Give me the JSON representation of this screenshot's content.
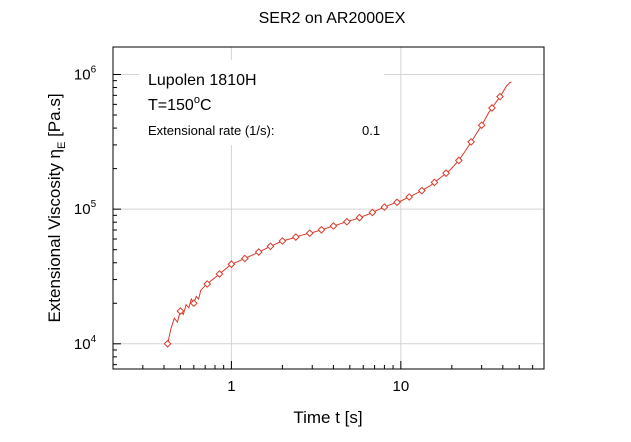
{
  "chart_data": {
    "type": "line",
    "title": "SER2 on AR2000EX",
    "xlabel": "Time t [s]",
    "ylabel": {
      "main": "Extensional Viscosity η",
      "subscript": "E",
      "unit": " [Pa.s]"
    },
    "x_scale": "log",
    "y_scale": "log",
    "xlim": [
      0.2,
      70
    ],
    "ylim": [
      6500,
      1600000
    ],
    "x_ticks": [
      {
        "value": 1,
        "label": "1"
      },
      {
        "value": 10,
        "label": "10"
      }
    ],
    "y_ticks": [
      {
        "value": 10000,
        "base": "10",
        "exp": "4"
      },
      {
        "value": 100000,
        "base": "10",
        "exp": "5"
      },
      {
        "value": 1000000,
        "base": "10",
        "exp": "6"
      }
    ],
    "grid": true,
    "annotations": {
      "material": "Lupolen 1810H",
      "temperature": "T=150",
      "temperature_unit": "o",
      "temperature_suffix": "C",
      "rate_label": "Extensional rate (1/s):",
      "rate_value": "0.1"
    },
    "series": [
      {
        "color": "#d93a2b",
        "marker": "diamond",
        "x": [
          0.42,
          0.44,
          0.46,
          0.48,
          0.5,
          0.52,
          0.54,
          0.56,
          0.58,
          0.6,
          0.62,
          0.64,
          0.66,
          0.7,
          0.75,
          0.8,
          0.85,
          0.9,
          0.95,
          1.0,
          1.1,
          1.2,
          1.35,
          1.5,
          1.7,
          2.0,
          2.3,
          2.6,
          3.0,
          3.5,
          4.0,
          4.7,
          5.5,
          6.5,
          7.5,
          8.5,
          10,
          11.5,
          13,
          15,
          17,
          19.5,
          22,
          24,
          27,
          30,
          33,
          36,
          39,
          42,
          44,
          45
        ],
        "y": [
          10000,
          13000,
          15500,
          14500,
          17500,
          16500,
          19500,
          18500,
          21500,
          20000,
          22500,
          21500,
          25000,
          27000,
          29000,
          31000,
          33000,
          35000,
          37000,
          39000,
          41000,
          43000,
          46000,
          49000,
          53000,
          58000,
          61000,
          64000,
          67000,
          71000,
          75000,
          80000,
          85000,
          92000,
          100000,
          107000,
          115000,
          125000,
          135000,
          150000,
          170000,
          195000,
          230000,
          270000,
          340000,
          420000,
          520000,
          610000,
          700000,
          820000,
          870000,
          880000
        ],
        "marker_x": [
          0.42,
          0.5,
          0.6,
          0.72,
          0.85,
          1.0,
          1.2,
          1.45,
          1.7,
          2.0,
          2.4,
          2.9,
          3.4,
          4.0,
          4.8,
          5.7,
          6.8,
          8.0,
          9.5,
          11.2,
          13.3,
          15.8,
          18.5,
          22,
          26,
          30,
          34.5,
          38.5
        ]
      }
    ]
  }
}
